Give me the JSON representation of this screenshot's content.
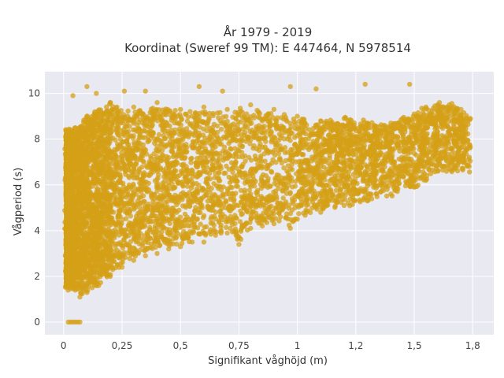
{
  "chart_data": {
    "type": "scatter",
    "title_lines": [
      "År 1979 - 2019",
      "Koordinat (Sweref 99 TM): E 447464, N 5978514"
    ],
    "xlabel": "Signifikant våghöjd (m)",
    "ylabel": "Vågperiod (s)",
    "xlim": [
      -0.08,
      1.84
    ],
    "ylim": [
      -0.55,
      10.95
    ],
    "x_ticks": [
      0,
      0.25,
      0.5,
      0.75,
      1,
      1.25,
      1.5,
      1.75
    ],
    "x_tick_labels": [
      "0",
      "0,25",
      "0,5",
      "0,75",
      "1",
      "1,2",
      "1,5",
      "1,8"
    ],
    "y_ticks": [
      0,
      2,
      4,
      6,
      8,
      10
    ],
    "y_tick_labels": [
      "0",
      "2",
      "4",
      "6",
      "8",
      "10"
    ],
    "grid": true,
    "background": "#e9e9f2",
    "grid_color": "#ffffff",
    "marker_color": "#d4a017",
    "series": [
      {
        "points": [
          [
            0.02,
            0
          ],
          [
            0.03,
            0
          ],
          [
            0.04,
            0
          ],
          [
            0.05,
            0
          ],
          [
            0.06,
            0
          ],
          [
            0.07,
            0
          ],
          [
            0.04,
            9.9
          ],
          [
            0.1,
            10.3
          ],
          [
            0.14,
            10.0
          ],
          [
            0.26,
            10.1
          ],
          [
            0.35,
            10.1
          ],
          [
            0.58,
            10.3
          ],
          [
            0.68,
            10.1
          ],
          [
            0.97,
            10.3
          ],
          [
            1.08,
            10.2
          ],
          [
            1.29,
            10.4
          ],
          [
            1.48,
            10.4
          ],
          [
            0.05,
            8.5
          ],
          [
            0.1,
            9.0
          ],
          [
            0.2,
            9.6
          ],
          [
            0.3,
            9.4
          ],
          [
            0.4,
            9.6
          ],
          [
            0.5,
            9.3
          ],
          [
            0.6,
            9.4
          ],
          [
            0.7,
            9.3
          ],
          [
            0.8,
            9.5
          ],
          [
            0.9,
            9.3
          ],
          [
            1.0,
            9.0
          ],
          [
            1.1,
            8.8
          ],
          [
            1.2,
            8.9
          ],
          [
            1.3,
            8.7
          ],
          [
            1.4,
            8.7
          ],
          [
            1.5,
            9.1
          ],
          [
            1.55,
            9.4
          ],
          [
            1.6,
            9.5
          ],
          [
            1.65,
            9.5
          ],
          [
            1.7,
            9.3
          ],
          [
            1.74,
            8.9
          ],
          [
            0.05,
            1.4
          ],
          [
            0.07,
            1.1
          ],
          [
            0.1,
            1.3
          ],
          [
            0.15,
            1.6
          ],
          [
            0.2,
            2.0
          ],
          [
            0.25,
            2.4
          ],
          [
            0.3,
            2.7
          ],
          [
            0.35,
            2.9
          ],
          [
            0.4,
            3.0
          ],
          [
            0.45,
            3.2
          ],
          [
            0.5,
            3.3
          ],
          [
            0.55,
            3.5
          ],
          [
            0.6,
            3.5
          ],
          [
            0.65,
            3.8
          ],
          [
            0.7,
            3.9
          ],
          [
            0.75,
            3.4
          ],
          [
            0.8,
            4.1
          ],
          [
            0.85,
            4.2
          ],
          [
            0.9,
            4.3
          ],
          [
            0.97,
            4.1
          ],
          [
            1.0,
            4.5
          ],
          [
            1.1,
            4.8
          ],
          [
            1.2,
            5.1
          ],
          [
            1.3,
            5.3
          ],
          [
            1.4,
            5.6
          ],
          [
            1.5,
            5.9
          ],
          [
            1.55,
            6.2
          ],
          [
            1.6,
            6.6
          ]
        ]
      }
    ]
  }
}
